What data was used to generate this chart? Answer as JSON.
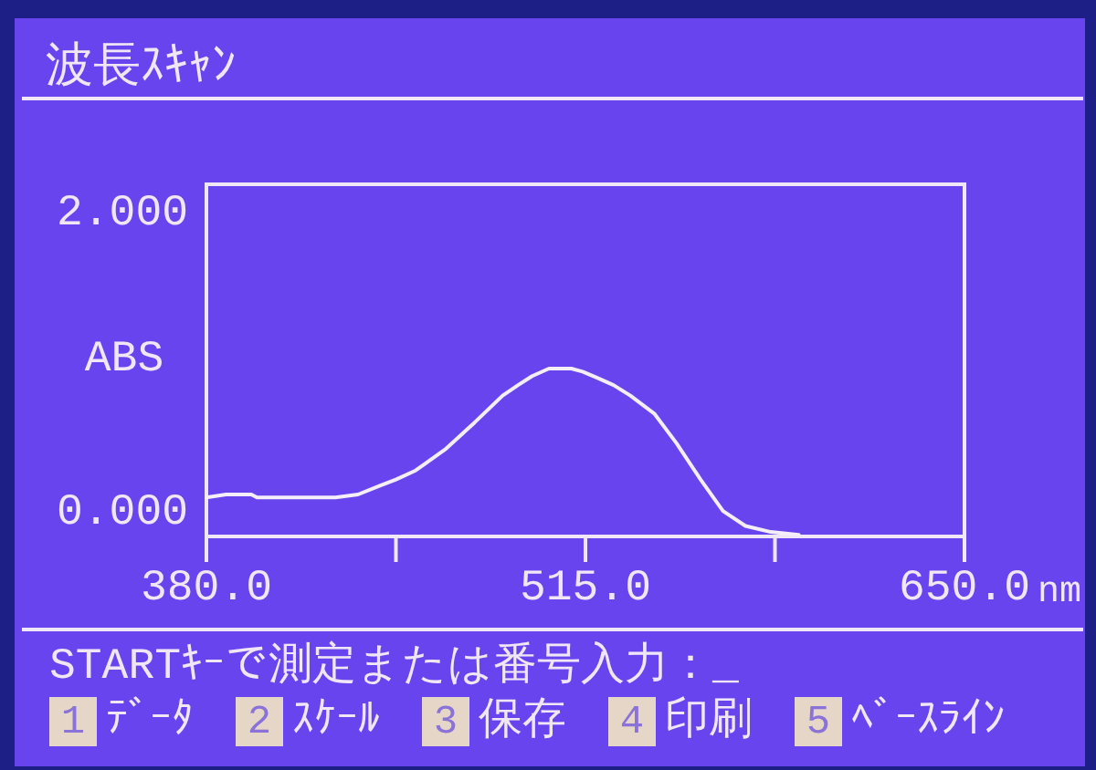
{
  "chart_data": {
    "type": "line",
    "title": "波長ｽｷｬﾝ",
    "xlabel": "nm",
    "ylabel": "ABS",
    "annotations": [
      "STARTｷｰで測定または番号入力：_",
      "1",
      "ﾃﾞｰﾀ",
      "2",
      "ｽｹｰﾙ",
      "3",
      "保存",
      "4",
      "印刷",
      "5",
      "ﾍﾞｰｽﾗｲﾝ"
    ],
    "x": [
      380,
      387,
      396,
      398,
      415,
      426,
      434,
      442,
      447.5,
      454.5,
      465,
      475.5,
      485.5,
      491,
      496,
      502,
      510,
      514,
      519,
      525,
      531,
      539.5,
      547.5,
      556,
      564,
      572,
      581,
      591
    ],
    "series": [
      {
        "color": "#f4eef8",
        "values": [
          0.11,
          0.13,
          0.13,
          0.11,
          0.11,
          0.11,
          0.13,
          0.19,
          0.23,
          0.29,
          0.43,
          0.61,
          0.79,
          0.86,
          0.92,
          0.97,
          0.97,
          0.95,
          0.91,
          0.86,
          0.79,
          0.67,
          0.47,
          0.23,
          0.02,
          -0.08,
          -0.12,
          -0.14
        ]
      }
    ],
    "xlim": [
      380,
      650
    ],
    "ylim": [
      -0.15,
      2.2
    ],
    "xticks": [
      {
        "value": 380,
        "label": "380.0"
      },
      {
        "value": 447.5,
        "label": null
      },
      {
        "value": 515,
        "label": "515.0"
      },
      {
        "value": 582.5,
        "label": null
      },
      {
        "value": 650,
        "label": "650.0"
      }
    ],
    "yticks": [
      {
        "value": 0,
        "label": "0.000"
      },
      {
        "value": 2,
        "label": "2.000"
      }
    ]
  }
}
